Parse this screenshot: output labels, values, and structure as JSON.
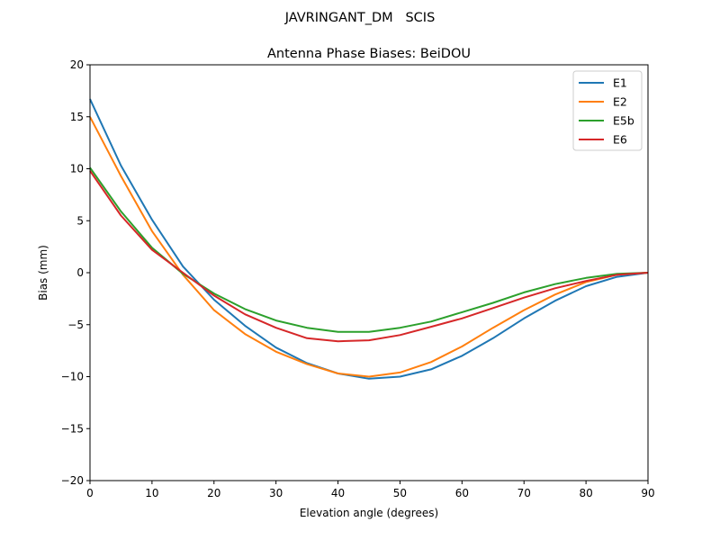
{
  "chart_data": {
    "type": "line",
    "suptitle": "JAVRINGANT_DM   SCIS",
    "title": "Antenna Phase Biases: BeiDOU",
    "xlabel": "Elevation angle (degrees)",
    "ylabel": "Bias (mm)",
    "xlim": [
      0,
      90
    ],
    "ylim": [
      -20,
      20
    ],
    "xticks": [
      0,
      10,
      20,
      30,
      40,
      50,
      60,
      70,
      80,
      90
    ],
    "yticks": [
      -20,
      -15,
      -10,
      -5,
      0,
      5,
      10,
      15,
      20
    ],
    "ytick_labels": [
      "−20",
      "−15",
      "−10",
      "−5",
      "0",
      "5",
      "10",
      "15",
      "20"
    ],
    "grid": false,
    "legend_position": "top-right",
    "x": [
      0,
      5,
      10,
      15,
      20,
      25,
      30,
      35,
      40,
      45,
      50,
      55,
      60,
      65,
      70,
      75,
      80,
      85,
      90
    ],
    "series": [
      {
        "name": "E1",
        "color": "#1f77b4",
        "values": [
          16.7,
          10.3,
          5.1,
          0.6,
          -2.6,
          -5.1,
          -7.2,
          -8.7,
          -9.7,
          -10.2,
          -10.0,
          -9.3,
          -8.0,
          -6.3,
          -4.4,
          -2.7,
          -1.3,
          -0.4,
          0
        ]
      },
      {
        "name": "E2",
        "color": "#ff7f0e",
        "values": [
          15.0,
          9.3,
          4.0,
          -0.2,
          -3.6,
          -5.9,
          -7.6,
          -8.8,
          -9.7,
          -10.0,
          -9.6,
          -8.6,
          -7.1,
          -5.3,
          -3.6,
          -2.1,
          -0.9,
          -0.2,
          0
        ]
      },
      {
        "name": "E5b",
        "color": "#2ca02c",
        "values": [
          10.1,
          5.9,
          2.4,
          -0.1,
          -2.0,
          -3.5,
          -4.6,
          -5.3,
          -5.7,
          -5.7,
          -5.3,
          -4.7,
          -3.8,
          -2.9,
          -1.9,
          -1.1,
          -0.5,
          -0.1,
          0
        ]
      },
      {
        "name": "E6",
        "color": "#d62728",
        "values": [
          9.8,
          5.5,
          2.2,
          0.0,
          -2.2,
          -4.0,
          -5.3,
          -6.3,
          -6.6,
          -6.5,
          -6.0,
          -5.2,
          -4.4,
          -3.4,
          -2.4,
          -1.5,
          -0.8,
          -0.2,
          0
        ]
      }
    ]
  }
}
